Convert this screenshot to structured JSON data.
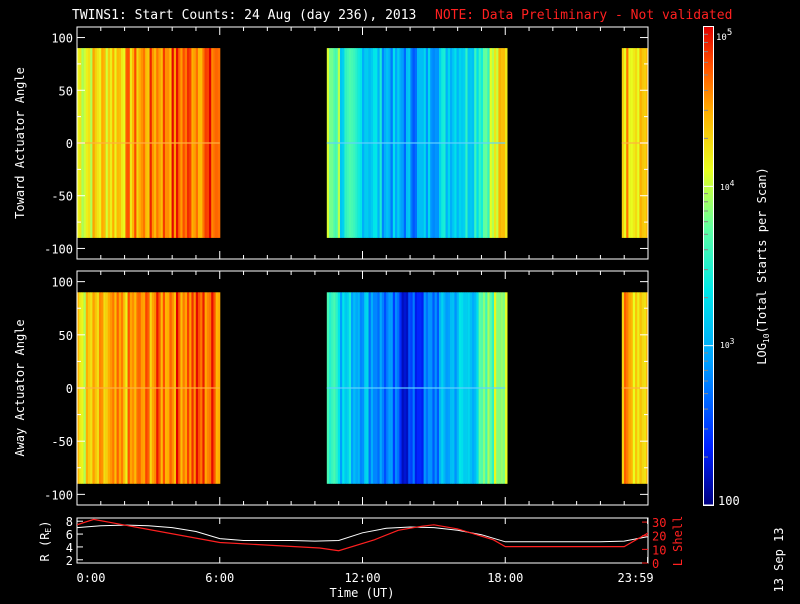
{
  "title": "TWINS1: Start Counts: 24 Aug (day 236), 2013",
  "note": "NOTE: Data Preliminary - Not validated",
  "date_stamp": "13 Sep 13",
  "colorbar": {
    "label_log": "LOG",
    "label_sub": "10",
    "label_rest": "(Total Starts per Scan)",
    "tick_100": "100",
    "tick_1e3_base": "10",
    "tick_1e3_exp": "3",
    "tick_1e4_base": "10",
    "tick_1e4_exp": "4",
    "tick_1e5_base": "10",
    "tick_1e5_exp": "5",
    "range": [
      100,
      100000
    ],
    "scale": "log"
  },
  "chart_data": [
    {
      "type": "heatmap",
      "ylabel": "Toward Actuator Angle",
      "ylim": [
        -110,
        110
      ],
      "y_ticks": [
        "100",
        "50",
        "0",
        "-50",
        "-100"
      ],
      "x_range_hours": [
        0,
        24
      ],
      "data_y_range": [
        -90,
        90
      ],
      "segments": [
        {
          "start_h": 0.0,
          "end_h": 6.0,
          "level": "high (~10^4.5-10^5)"
        },
        {
          "start_h": 10.5,
          "end_h": 18.0,
          "level": "low-mid (~10^3-10^4)"
        },
        {
          "start_h": 22.9,
          "end_h": 24.0,
          "level": "high (~10^4.5)"
        }
      ]
    },
    {
      "type": "heatmap",
      "ylabel": "Away Actuator Angle",
      "ylim": [
        -110,
        110
      ],
      "y_ticks": [
        "100",
        "50",
        "0",
        "-50",
        "-100"
      ],
      "x_range_hours": [
        0,
        24
      ],
      "data_y_range": [
        -90,
        90
      ],
      "segments": [
        {
          "start_h": 0.0,
          "end_h": 6.0,
          "level": "high (~10^4.5-10^5)"
        },
        {
          "start_h": 10.5,
          "end_h": 18.0,
          "level": "low (~10^2.5-10^4)"
        },
        {
          "start_h": 22.9,
          "end_h": 24.0,
          "level": "high (~10^4.5)"
        }
      ]
    },
    {
      "type": "line",
      "ylabel_left": "R (R",
      "ylabel_left_sub": "E",
      "ylabel_left_end": ")",
      "ylabel_right": "L Shell",
      "xlabel": "Time (UT)",
      "x_ticks": [
        "0:00",
        "6:00",
        "12:00",
        "18:00",
        "23:59"
      ],
      "y_left_ticks": [
        "2",
        "4",
        "6",
        "8"
      ],
      "y_left_range": [
        1.5,
        8.5
      ],
      "y_right_ticks": [
        "0",
        "10",
        "20",
        "30"
      ],
      "y_right_range": [
        0,
        33
      ],
      "series": [
        {
          "color": "#ffffff",
          "axis": "left",
          "x": [
            0,
            1,
            2,
            3,
            4,
            5,
            6,
            7,
            8,
            9,
            10,
            11,
            12,
            13,
            14,
            15,
            16,
            17,
            18,
            19,
            20,
            21,
            22,
            23,
            24
          ],
          "y": [
            7.0,
            7.3,
            7.4,
            7.3,
            7.0,
            6.4,
            5.3,
            5.0,
            5.0,
            5.0,
            4.9,
            5.0,
            6.2,
            6.9,
            7.1,
            7.0,
            6.6,
            5.9,
            4.8,
            4.8,
            4.8,
            4.8,
            4.8,
            4.9,
            5.6
          ]
        },
        {
          "color": "#ff2020",
          "axis": "right",
          "x": [
            0,
            0.7,
            6.0,
            10.2,
            11.0,
            12.5,
            13.5,
            14.5,
            15.0,
            16.0,
            17.5,
            18.0,
            22.0,
            23.0,
            24.0
          ],
          "y": [
            28,
            32,
            15,
            11,
            9,
            17,
            24,
            27,
            28,
            25,
            17,
            12,
            12,
            12,
            22
          ]
        }
      ]
    }
  ]
}
